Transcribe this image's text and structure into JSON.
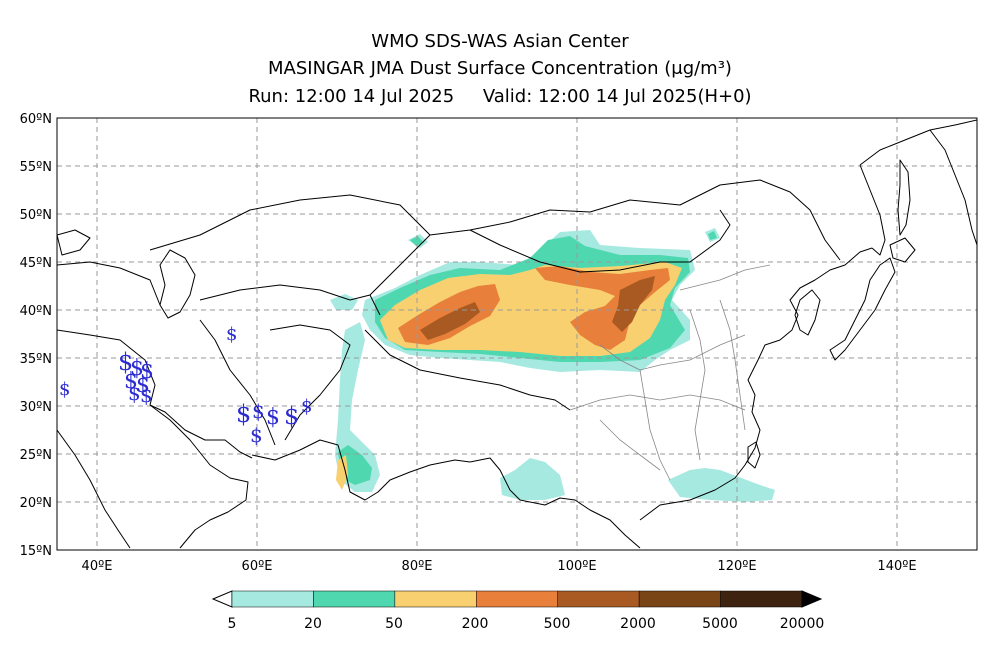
{
  "header": {
    "line1": "WMO SDS-WAS Asian Center",
    "line2": "MASINGAR JMA Dust Surface Concentration (μg/m³)",
    "line3": "Run: 12:00 14 Jul 2025     Valid: 12:00 14 Jul 2025(H+0)"
  },
  "axes": {
    "lat_ticks": [
      "60ºN",
      "55ºN",
      "50ºN",
      "45ºN",
      "40ºN",
      "35ºN",
      "30ºN",
      "25ºN",
      "20ºN",
      "15ºN"
    ],
    "lon_ticks": [
      "40ºE",
      "60ºE",
      "80ºE",
      "100ºE",
      "120ºE",
      "140ºE"
    ],
    "lon_range": [
      35,
      150
    ],
    "lat_range": [
      15,
      60
    ],
    "grid": true
  },
  "colorbar": {
    "labels": [
      "5",
      "20",
      "50",
      "200",
      "500",
      "2000",
      "5000",
      "20000"
    ],
    "colors": [
      "#a6e9e0",
      "#4fd8b0",
      "#f8d070",
      "#e87f3a",
      "#a85a22",
      "#7a4516",
      "#3e2410"
    ]
  },
  "map": {
    "region": "Central and East Asia",
    "dust_symbol": "$",
    "dust_symbol_color": "#2b2bd0"
  }
}
